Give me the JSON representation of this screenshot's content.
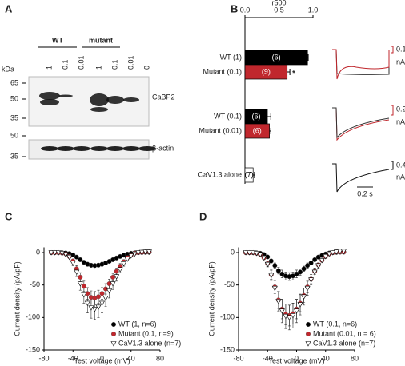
{
  "panel_label_a": "A",
  "blot": {
    "groups": [
      "WT",
      "mutant"
    ],
    "unit": "kDa",
    "lanes": [
      "1",
      "0.1",
      "0.01",
      "1",
      "0.1",
      "0.01",
      "0"
    ],
    "markers": [
      "65",
      "50",
      "35",
      "50",
      "35"
    ],
    "bands": [
      "CaBP2",
      "β-actin"
    ]
  },
  "traces": {
    "scales": [
      [
        "0.1",
        "nA"
      ],
      [
        "0.2",
        "nA"
      ],
      [
        "0.4",
        "nA"
      ]
    ],
    "time_scale": "0.2 s"
  },
  "chart_data": [
    {
      "type": "hbar",
      "panel": "B",
      "xlabel": "r500",
      "categories": [
        "WT (1)",
        "Mutant (0.1)",
        "WT (0.1)",
        "Mutant (0.01)",
        "CaV1.3 alone"
      ],
      "values": [
        0.92,
        0.62,
        0.33,
        0.36,
        0.12
      ],
      "errors": [
        0.01,
        0.04,
        0.05,
        0.02,
        0.02
      ],
      "n_labels": [
        "(6)",
        "(9)",
        "(6)",
        "(6)",
        "(7)"
      ],
      "colors": [
        "#000000",
        "#c0272d",
        "#000000",
        "#c0272d",
        "#ffffff"
      ],
      "annotation": "*",
      "xlim": [
        0,
        1
      ],
      "xticks": [
        {
          "value": 0,
          "label": "0.0"
        },
        {
          "value": 0.5,
          "label": "0.5"
        },
        {
          "value": 1,
          "label": "1.0"
        }
      ]
    },
    {
      "type": "iv",
      "panel": "C",
      "xlabel": "Test voltage (mV)",
      "ylabel": "Current density (pA/pF)",
      "x": [
        -70,
        -65,
        -60,
        -55,
        -50,
        -45,
        -40,
        -35,
        -30,
        -25,
        -20,
        -15,
        -10,
        -5,
        0,
        5,
        10,
        15,
        20,
        25,
        30,
        35,
        40,
        45,
        50,
        55,
        60,
        65
      ],
      "series": [
        {
          "name": "WT (1, n=6)",
          "color": "#000000",
          "marker": "circle",
          "values": [
            0,
            0,
            0,
            -0.2,
            -0.6,
            -1.6,
            -3.6,
            -7,
            -11,
            -15,
            -18,
            -19.6,
            -20,
            -19.4,
            -18,
            -16,
            -13.6,
            -11,
            -8.4,
            -6,
            -4,
            -2.4,
            -1.2,
            -0.4,
            0,
            0.2,
            0.4,
            0.4
          ],
          "errors": [
            0,
            0,
            0,
            0,
            0,
            1,
            1,
            2,
            2,
            3,
            3,
            3,
            3,
            3,
            3,
            3,
            2,
            2,
            2,
            1,
            1,
            1,
            0,
            0,
            0,
            0,
            0,
            0
          ]
        },
        {
          "name": "Mutant (0.1, n=9)",
          "color": "#c0272d",
          "marker": "circle",
          "values": [
            0,
            0,
            0,
            -0.7,
            -2,
            -6,
            -13,
            -25,
            -38,
            -52,
            -63,
            -69,
            -70,
            -68,
            -63,
            -56,
            -48,
            -38,
            -29,
            -21,
            -14,
            -8,
            -4,
            -1,
            0,
            0.5,
            1,
            1
          ],
          "errors": [
            0,
            0,
            0,
            0,
            1,
            2,
            3,
            5,
            7,
            8,
            9,
            10,
            10,
            10,
            9,
            8,
            7,
            6,
            5,
            4,
            3,
            2,
            1,
            1,
            0,
            0,
            0,
            0
          ]
        },
        {
          "name": "CaV1.3 alone (n=7)",
          "color": "#ffffff",
          "marker": "triangle",
          "values": [
            0,
            0,
            0,
            -1,
            -3,
            -7,
            -16,
            -30,
            -48,
            -65,
            -78,
            -85,
            -87,
            -84,
            -78,
            -70,
            -59,
            -48,
            -37,
            -26,
            -17,
            -10,
            -5,
            -2,
            0,
            0.5,
            1,
            1
          ],
          "errors": [
            0,
            0,
            0,
            0,
            1,
            2,
            4,
            7,
            10,
            13,
            15,
            16,
            16,
            16,
            15,
            13,
            11,
            9,
            7,
            5,
            4,
            2,
            1,
            1,
            0,
            0,
            0,
            0
          ]
        }
      ],
      "xlim": [
        -80,
        80
      ],
      "xticks": [
        -80,
        -40,
        0,
        40,
        80
      ],
      "ylim": [
        -150,
        8
      ],
      "yticks": [
        -150,
        -100,
        -50,
        0
      ]
    },
    {
      "type": "iv",
      "panel": "D",
      "xlabel": "Test voltage (mV)",
      "ylabel": "Current density (pA/pF)",
      "x": [
        -70,
        -65,
        -60,
        -55,
        -50,
        -45,
        -40,
        -35,
        -30,
        -25,
        -20,
        -15,
        -10,
        -5,
        0,
        5,
        10,
        15,
        20,
        25,
        30,
        35,
        40,
        45,
        50,
        55,
        60,
        65
      ],
      "series": [
        {
          "name": "WT (0.1, n=6)",
          "color": "#000000",
          "marker": "circle",
          "values": [
            0,
            0,
            0,
            -0.4,
            -1.1,
            -3,
            -6.7,
            -13,
            -20,
            -28,
            -33,
            -36,
            -37,
            -36,
            -33,
            -30,
            -25,
            -20,
            -16,
            -11,
            -7,
            -4.4,
            -2.2,
            -0.7,
            0,
            0.4,
            0.7,
            0.7
          ],
          "errors": [
            0,
            0,
            0,
            0,
            0,
            1,
            2,
            3,
            4,
            5,
            6,
            6,
            6,
            6,
            6,
            5,
            4,
            4,
            3,
            2,
            1,
            1,
            0,
            0,
            0,
            0,
            0,
            0
          ]
        },
        {
          "name": "Mutant (0.01, n = 6)",
          "color": "#c0272d",
          "marker": "circle",
          "values": [
            0,
            0,
            0,
            -1,
            -3,
            -8,
            -17,
            -34,
            -53,
            -73,
            -87,
            -95,
            -97,
            -94,
            -87,
            -78,
            -66,
            -53,
            -41,
            -29,
            -19,
            -12,
            -6,
            -2,
            0,
            1,
            1,
            1
          ],
          "errors": [
            0,
            0,
            0,
            0,
            1,
            2,
            4,
            7,
            10,
            13,
            15,
            16,
            16,
            16,
            15,
            13,
            11,
            9,
            7,
            5,
            3,
            2,
            1,
            0,
            0,
            0,
            0,
            0
          ]
        },
        {
          "name": "CaV1.3 alone (n=7)",
          "color": "#ffffff",
          "marker": "triangle",
          "values": [
            0,
            0,
            0,
            -1,
            -3,
            -8,
            -18,
            -35,
            -55,
            -75,
            -90,
            -98,
            -100,
            -97,
            -90,
            -80,
            -68,
            -55,
            -42,
            -30,
            -20,
            -12,
            -6,
            -2,
            0,
            1,
            2,
            2
          ],
          "errors": [
            0,
            0,
            0,
            0,
            1,
            2,
            4,
            8,
            12,
            15,
            18,
            19,
            19,
            19,
            18,
            16,
            13,
            11,
            8,
            6,
            4,
            2,
            1,
            1,
            0,
            0,
            0,
            0
          ]
        }
      ],
      "xlim": [
        -80,
        80
      ],
      "xticks": [
        -80,
        -40,
        0,
        40,
        80
      ],
      "ylim": [
        -150,
        8
      ],
      "yticks": [
        -150,
        -100,
        -50,
        0
      ]
    }
  ]
}
